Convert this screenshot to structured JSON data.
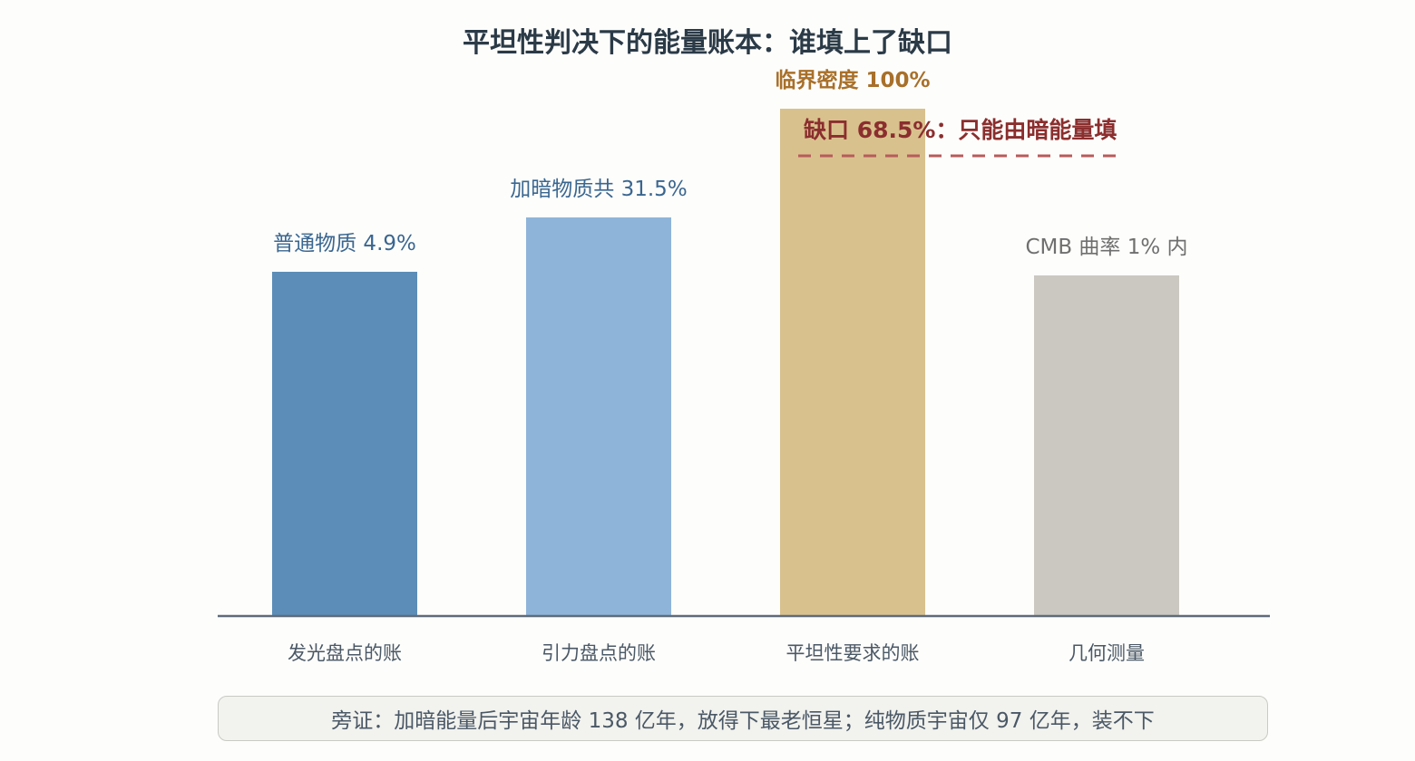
{
  "chart_data": {
    "type": "bar",
    "title": "平坦性判决下的能量账本：谁填上了缺口",
    "categories": [
      "发光盘点的账",
      "引力盘点的账",
      "平坦性要求的账",
      "几何测量"
    ],
    "values": [
      4.9,
      31.5,
      100,
      1
    ],
    "bar_labels": [
      "普通物质 4.9%",
      "加暗物质共 31.5%",
      "临界密度 100%",
      "CMB 曲率 1% 内"
    ],
    "bar_colors": [
      "#5b8db8",
      "#8fb4d9",
      "#d9c18e",
      "#cac8c0"
    ],
    "label_colors": [
      "#3a6690",
      "#3a6690",
      "#a8702a",
      "#6f6f6f"
    ],
    "gap_annotation": {
      "text": "缺口 68.5%：只能由暗能量填",
      "value": 68.5,
      "color": "#8b2e2e",
      "line_color": "#b85b5b"
    },
    "note": "旁证：加暗能量后宇宙年龄 138 亿年，放得下最老恒星；纯物质宇宙仅 97 亿年，装不下",
    "axis_color": "#5f6b7a"
  }
}
